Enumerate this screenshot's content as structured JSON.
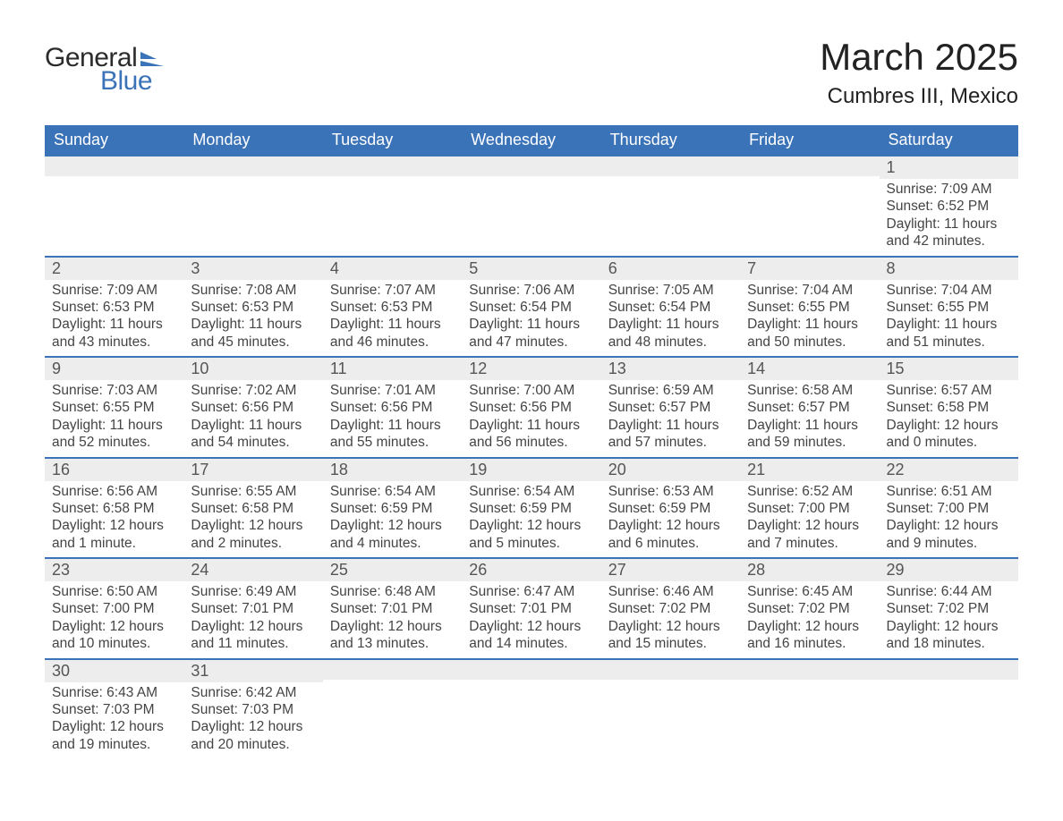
{
  "logo": {
    "text1": "General",
    "text2": "Blue",
    "shape_color": "#3b73b9"
  },
  "title": "March 2025",
  "location": "Cumbres III, Mexico",
  "colors": {
    "header_bg": "#3b73b9",
    "header_text": "#ffffff",
    "daynum_bg": "#ededed",
    "row_border": "#3b73b9",
    "body_text": "#444444",
    "page_bg": "#ffffff"
  },
  "typography": {
    "title_fontsize": 42,
    "location_fontsize": 24,
    "header_fontsize": 18,
    "daynum_fontsize": 18,
    "body_fontsize": 15.5,
    "font_family": "Arial"
  },
  "day_names": [
    "Sunday",
    "Monday",
    "Tuesday",
    "Wednesday",
    "Thursday",
    "Friday",
    "Saturday"
  ],
  "weeks": [
    [
      null,
      null,
      null,
      null,
      null,
      null,
      {
        "n": "1",
        "sunrise": "Sunrise: 7:09 AM",
        "sunset": "Sunset: 6:52 PM",
        "daylight": "Daylight: 11 hours and 42 minutes."
      }
    ],
    [
      {
        "n": "2",
        "sunrise": "Sunrise: 7:09 AM",
        "sunset": "Sunset: 6:53 PM",
        "daylight": "Daylight: 11 hours and 43 minutes."
      },
      {
        "n": "3",
        "sunrise": "Sunrise: 7:08 AM",
        "sunset": "Sunset: 6:53 PM",
        "daylight": "Daylight: 11 hours and 45 minutes."
      },
      {
        "n": "4",
        "sunrise": "Sunrise: 7:07 AM",
        "sunset": "Sunset: 6:53 PM",
        "daylight": "Daylight: 11 hours and 46 minutes."
      },
      {
        "n": "5",
        "sunrise": "Sunrise: 7:06 AM",
        "sunset": "Sunset: 6:54 PM",
        "daylight": "Daylight: 11 hours and 47 minutes."
      },
      {
        "n": "6",
        "sunrise": "Sunrise: 7:05 AM",
        "sunset": "Sunset: 6:54 PM",
        "daylight": "Daylight: 11 hours and 48 minutes."
      },
      {
        "n": "7",
        "sunrise": "Sunrise: 7:04 AM",
        "sunset": "Sunset: 6:55 PM",
        "daylight": "Daylight: 11 hours and 50 minutes."
      },
      {
        "n": "8",
        "sunrise": "Sunrise: 7:04 AM",
        "sunset": "Sunset: 6:55 PM",
        "daylight": "Daylight: 11 hours and 51 minutes."
      }
    ],
    [
      {
        "n": "9",
        "sunrise": "Sunrise: 7:03 AM",
        "sunset": "Sunset: 6:55 PM",
        "daylight": "Daylight: 11 hours and 52 minutes."
      },
      {
        "n": "10",
        "sunrise": "Sunrise: 7:02 AM",
        "sunset": "Sunset: 6:56 PM",
        "daylight": "Daylight: 11 hours and 54 minutes."
      },
      {
        "n": "11",
        "sunrise": "Sunrise: 7:01 AM",
        "sunset": "Sunset: 6:56 PM",
        "daylight": "Daylight: 11 hours and 55 minutes."
      },
      {
        "n": "12",
        "sunrise": "Sunrise: 7:00 AM",
        "sunset": "Sunset: 6:56 PM",
        "daylight": "Daylight: 11 hours and 56 minutes."
      },
      {
        "n": "13",
        "sunrise": "Sunrise: 6:59 AM",
        "sunset": "Sunset: 6:57 PM",
        "daylight": "Daylight: 11 hours and 57 minutes."
      },
      {
        "n": "14",
        "sunrise": "Sunrise: 6:58 AM",
        "sunset": "Sunset: 6:57 PM",
        "daylight": "Daylight: 11 hours and 59 minutes."
      },
      {
        "n": "15",
        "sunrise": "Sunrise: 6:57 AM",
        "sunset": "Sunset: 6:58 PM",
        "daylight": "Daylight: 12 hours and 0 minutes."
      }
    ],
    [
      {
        "n": "16",
        "sunrise": "Sunrise: 6:56 AM",
        "sunset": "Sunset: 6:58 PM",
        "daylight": "Daylight: 12 hours and 1 minute."
      },
      {
        "n": "17",
        "sunrise": "Sunrise: 6:55 AM",
        "sunset": "Sunset: 6:58 PM",
        "daylight": "Daylight: 12 hours and 2 minutes."
      },
      {
        "n": "18",
        "sunrise": "Sunrise: 6:54 AM",
        "sunset": "Sunset: 6:59 PM",
        "daylight": "Daylight: 12 hours and 4 minutes."
      },
      {
        "n": "19",
        "sunrise": "Sunrise: 6:54 AM",
        "sunset": "Sunset: 6:59 PM",
        "daylight": "Daylight: 12 hours and 5 minutes."
      },
      {
        "n": "20",
        "sunrise": "Sunrise: 6:53 AM",
        "sunset": "Sunset: 6:59 PM",
        "daylight": "Daylight: 12 hours and 6 minutes."
      },
      {
        "n": "21",
        "sunrise": "Sunrise: 6:52 AM",
        "sunset": "Sunset: 7:00 PM",
        "daylight": "Daylight: 12 hours and 7 minutes."
      },
      {
        "n": "22",
        "sunrise": "Sunrise: 6:51 AM",
        "sunset": "Sunset: 7:00 PM",
        "daylight": "Daylight: 12 hours and 9 minutes."
      }
    ],
    [
      {
        "n": "23",
        "sunrise": "Sunrise: 6:50 AM",
        "sunset": "Sunset: 7:00 PM",
        "daylight": "Daylight: 12 hours and 10 minutes."
      },
      {
        "n": "24",
        "sunrise": "Sunrise: 6:49 AM",
        "sunset": "Sunset: 7:01 PM",
        "daylight": "Daylight: 12 hours and 11 minutes."
      },
      {
        "n": "25",
        "sunrise": "Sunrise: 6:48 AM",
        "sunset": "Sunset: 7:01 PM",
        "daylight": "Daylight: 12 hours and 13 minutes."
      },
      {
        "n": "26",
        "sunrise": "Sunrise: 6:47 AM",
        "sunset": "Sunset: 7:01 PM",
        "daylight": "Daylight: 12 hours and 14 minutes."
      },
      {
        "n": "27",
        "sunrise": "Sunrise: 6:46 AM",
        "sunset": "Sunset: 7:02 PM",
        "daylight": "Daylight: 12 hours and 15 minutes."
      },
      {
        "n": "28",
        "sunrise": "Sunrise: 6:45 AM",
        "sunset": "Sunset: 7:02 PM",
        "daylight": "Daylight: 12 hours and 16 minutes."
      },
      {
        "n": "29",
        "sunrise": "Sunrise: 6:44 AM",
        "sunset": "Sunset: 7:02 PM",
        "daylight": "Daylight: 12 hours and 18 minutes."
      }
    ],
    [
      {
        "n": "30",
        "sunrise": "Sunrise: 6:43 AM",
        "sunset": "Sunset: 7:03 PM",
        "daylight": "Daylight: 12 hours and 19 minutes."
      },
      {
        "n": "31",
        "sunrise": "Sunrise: 6:42 AM",
        "sunset": "Sunset: 7:03 PM",
        "daylight": "Daylight: 12 hours and 20 minutes."
      },
      null,
      null,
      null,
      null,
      null
    ]
  ]
}
